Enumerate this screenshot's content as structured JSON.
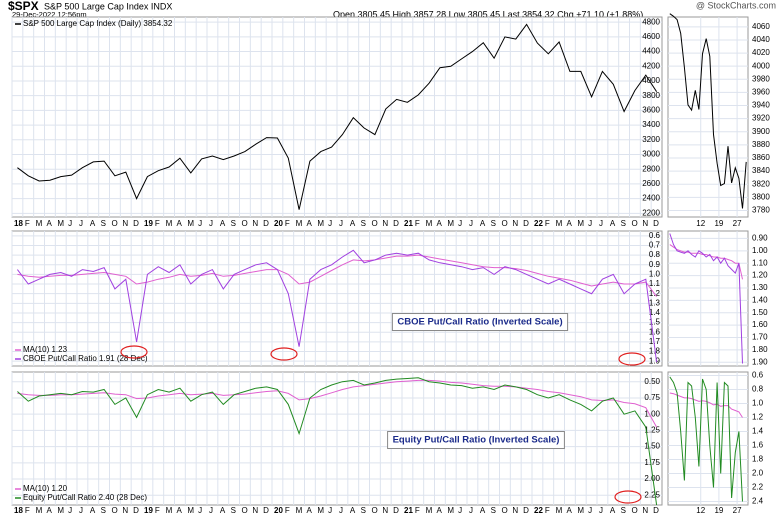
{
  "header": {
    "symbol": "$SPX",
    "name": "S&P 500 Large Cap Index INDX",
    "date": "29-Dec-2022 12:56pm",
    "quote": "Open 3805.45  High 3857.28  Low 3805.45  Last 3854.32  Chg +71.10 (+1.88%)",
    "source": "@ StockCharts.com"
  },
  "chart_data": [
    {
      "type": "line",
      "legend": "upper left",
      "categories": [
        "18",
        "F",
        "M",
        "A",
        "M",
        "J",
        "J",
        "A",
        "S",
        "O",
        "N",
        "D",
        "19",
        "F",
        "M",
        "A",
        "M",
        "J",
        "J",
        "A",
        "S",
        "O",
        "N",
        "D",
        "20",
        "F",
        "M",
        "A",
        "M",
        "J",
        "J",
        "A",
        "S",
        "O",
        "N",
        "D",
        "21",
        "F",
        "M",
        "A",
        "M",
        "J",
        "J",
        "A",
        "S",
        "O",
        "N",
        "D",
        "22",
        "F",
        "M",
        "A",
        "M",
        "J",
        "J",
        "A",
        "S",
        "O",
        "N",
        "D"
      ],
      "series": [
        {
          "name": "S&P 500 Large Cap Index (Daily) 3854.32",
          "color": "#000000",
          "values": [
            2820,
            2710,
            2640,
            2650,
            2700,
            2720,
            2820,
            2900,
            2910,
            2710,
            2760,
            2400,
            2700,
            2780,
            2830,
            2950,
            2750,
            2940,
            2980,
            2930,
            2980,
            3040,
            3140,
            3230,
            3225,
            2950,
            2250,
            2910,
            3040,
            3100,
            3270,
            3500,
            3360,
            3270,
            3620,
            3750,
            3710,
            3810,
            3970,
            4180,
            4200,
            4300,
            4400,
            4520,
            4310,
            4600,
            4570,
            4770,
            4515,
            4370,
            4530,
            4130,
            4130,
            3785,
            4130,
            3955,
            3585,
            3870,
            4080,
            3854
          ]
        }
      ],
      "ylim": [
        2150,
        4870
      ],
      "yticks": [
        2200,
        2400,
        2600,
        2800,
        3000,
        3200,
        3400,
        3600,
        3800,
        4000,
        4200,
        4400,
        4600,
        4800
      ],
      "grid": true
    },
    {
      "type": "line",
      "categories": [
        null,
        null,
        null,
        null,
        null,
        null,
        null,
        null,
        null,
        "12",
        null,
        null,
        null,
        null,
        "19",
        null,
        null,
        null,
        null,
        "27",
        null,
        null
      ],
      "series": [
        {
          "color": "#000000",
          "values": [
            4080,
            4076,
            4071,
            4050,
            3998,
            3941,
            3933,
            3963,
            3934,
            4019,
            4042,
            4015,
            3896,
            3852,
            3818,
            3821,
            3878,
            3822,
            3845,
            3829,
            3783,
            3854
          ]
        }
      ],
      "ylim": [
        3770,
        4075
      ],
      "yticks": [
        3780,
        3800,
        3820,
        3840,
        3860,
        3880,
        3900,
        3920,
        3940,
        3960,
        3980,
        4000,
        4020,
        4040,
        4060
      ],
      "grid": true
    },
    {
      "type": "line",
      "inverted": true,
      "legend": "lower left",
      "annotation": "CBOE Put/Call Ratio (Inverted Scale)",
      "categories": [
        "18",
        "F",
        "M",
        "A",
        "M",
        "J",
        "J",
        "A",
        "S",
        "O",
        "N",
        "D",
        "19",
        "F",
        "M",
        "A",
        "M",
        "J",
        "J",
        "A",
        "S",
        "O",
        "N",
        "D",
        "20",
        "F",
        "M",
        "A",
        "M",
        "J",
        "J",
        "A",
        "S",
        "O",
        "N",
        "D",
        "21",
        "F",
        "M",
        "A",
        "M",
        "J",
        "J",
        "A",
        "S",
        "O",
        "N",
        "D",
        "22",
        "F",
        "M",
        "A",
        "M",
        "J",
        "J",
        "A",
        "S",
        "O",
        "N",
        "D"
      ],
      "series": [
        {
          "name": "MA(10) 1.23",
          "color": "#e060d0",
          "values": [
            1.0,
            1.02,
            1.03,
            1.02,
            1.01,
            1.01,
            1.0,
            0.99,
            0.98,
            1.0,
            1.02,
            1.1,
            1.08,
            1.05,
            1.03,
            1.0,
            1.02,
            1.01,
            0.99,
            1.02,
            1.01,
            0.99,
            0.97,
            0.95,
            0.95,
            1.0,
            1.1,
            1.08,
            1.02,
            0.96,
            0.9,
            0.85,
            0.86,
            0.85,
            0.83,
            0.81,
            0.81,
            0.8,
            0.82,
            0.84,
            0.86,
            0.88,
            0.9,
            0.92,
            0.93,
            0.93,
            0.94,
            0.96,
            0.99,
            1.02,
            1.04,
            1.06,
            1.09,
            1.12,
            1.1,
            1.08,
            1.1,
            1.1,
            1.08,
            1.23
          ]
        },
        {
          "name": "CBOE Put/Call Ratio 1.91 (28 Dec)",
          "color": "#a040e0",
          "values": [
            0.95,
            1.1,
            1.05,
            1.0,
            0.98,
            1.02,
            0.95,
            0.97,
            0.93,
            1.15,
            1.05,
            1.7,
            1.0,
            0.92,
            0.98,
            0.9,
            1.1,
            1.0,
            0.95,
            1.15,
            1.0,
            0.95,
            0.9,
            0.88,
            0.95,
            1.2,
            1.75,
            1.05,
            0.95,
            0.9,
            0.82,
            0.75,
            0.88,
            0.85,
            0.8,
            0.78,
            0.8,
            0.78,
            0.85,
            0.88,
            0.9,
            0.92,
            0.95,
            0.93,
            1.0,
            0.92,
            0.95,
            1.0,
            1.05,
            1.1,
            1.05,
            1.1,
            1.15,
            1.2,
            1.05,
            1.0,
            1.2,
            1.1,
            1.05,
            1.91
          ]
        }
      ],
      "ylim": [
        0.55,
        1.95
      ],
      "yticks": [
        0.6,
        0.7,
        0.8,
        0.9,
        {
          "value": 1.0,
          "label": "1.0"
        },
        1.1,
        1.2,
        1.3,
        1.4,
        1.5,
        1.6,
        1.7,
        1.8,
        1.9
      ],
      "grid": true
    },
    {
      "type": "line",
      "inverted": true,
      "categories": [
        null,
        null,
        null,
        null,
        null,
        null,
        null,
        null,
        null,
        "12",
        null,
        null,
        null,
        null,
        "19",
        null,
        null,
        null,
        null,
        "27",
        null,
        null
      ],
      "series": [
        {
          "color": "#e060d0",
          "values": [
            0.95,
            0.97,
            0.99,
            1.0,
            1.01,
            1.01,
            1.02,
            1.02,
            1.02,
            1.03,
            1.03,
            1.04,
            1.05,
            1.05,
            1.06,
            1.06,
            1.07,
            1.08,
            1.1,
            1.1,
            1.23,
            null
          ]
        },
        {
          "color": "#a040e0",
          "values": [
            0.86,
            0.95,
            1.0,
            1.01,
            1.02,
            1.0,
            1.03,
            1.05,
            1.0,
            1.02,
            1.05,
            1.03,
            1.08,
            1.05,
            1.1,
            1.06,
            1.12,
            1.15,
            1.18,
            1.1,
            1.91,
            null
          ]
        }
      ],
      "ylim": [
        0.84,
        1.93
      ],
      "yticks": [
        {
          "value": 0.9,
          "label": "0.90"
        },
        {
          "value": 1.0,
          "label": "1.00"
        },
        {
          "value": 1.1,
          "label": "1.10"
        },
        {
          "value": 1.2,
          "label": "1.20"
        },
        {
          "value": 1.3,
          "label": "1.30"
        },
        {
          "value": 1.4,
          "label": "1.40"
        },
        {
          "value": 1.5,
          "label": "1.50"
        },
        {
          "value": 1.6,
          "label": "1.60"
        },
        {
          "value": 1.7,
          "label": "1.70"
        },
        {
          "value": 1.8,
          "label": "1.80"
        },
        {
          "value": 1.9,
          "label": "1.90"
        }
      ],
      "grid": true
    },
    {
      "type": "line",
      "inverted": true,
      "legend": "lower left",
      "annotation": "Equity Put/Call Ratio (Inverted Scale)",
      "categories": [
        "18",
        "F",
        "M",
        "A",
        "M",
        "J",
        "J",
        "A",
        "S",
        "O",
        "N",
        "D",
        "19",
        "F",
        "M",
        "A",
        "M",
        "J",
        "J",
        "A",
        "S",
        "O",
        "N",
        "D",
        "20",
        "F",
        "M",
        "A",
        "M",
        "J",
        "J",
        "A",
        "S",
        "O",
        "N",
        "D",
        "21",
        "F",
        "M",
        "A",
        "M",
        "J",
        "J",
        "A",
        "S",
        "O",
        "N",
        "D",
        "22",
        "F",
        "M",
        "A",
        "M",
        "J",
        "J",
        "A",
        "S",
        "O",
        "N",
        "D"
      ],
      "series": [
        {
          "name": "MA(10) 1.20",
          "color": "#e060d0",
          "values": [
            0.68,
            0.7,
            0.71,
            0.71,
            0.7,
            0.7,
            0.69,
            0.68,
            0.67,
            0.69,
            0.7,
            0.76,
            0.75,
            0.72,
            0.7,
            0.68,
            0.7,
            0.69,
            0.68,
            0.71,
            0.7,
            0.69,
            0.67,
            0.65,
            0.64,
            0.68,
            0.78,
            0.76,
            0.72,
            0.67,
            0.62,
            0.58,
            0.56,
            0.54,
            0.52,
            0.5,
            0.49,
            0.48,
            0.48,
            0.49,
            0.51,
            0.52,
            0.54,
            0.56,
            0.57,
            0.57,
            0.58,
            0.6,
            0.62,
            0.65,
            0.67,
            0.7,
            0.73,
            0.78,
            0.79,
            0.78,
            0.82,
            0.84,
            0.9,
            1.2
          ]
        },
        {
          "name": "Equity Put/Call Ratio 2.40 (28 Dec)",
          "color": "#228b22",
          "values": [
            0.65,
            0.8,
            0.72,
            0.7,
            0.68,
            0.7,
            0.65,
            0.66,
            0.62,
            0.85,
            0.75,
            1.05,
            0.7,
            0.62,
            0.66,
            0.6,
            0.8,
            0.7,
            0.66,
            0.85,
            0.7,
            0.65,
            0.6,
            0.58,
            0.62,
            0.85,
            1.3,
            0.75,
            0.62,
            0.55,
            0.5,
            0.48,
            0.55,
            0.52,
            0.48,
            0.46,
            0.45,
            0.44,
            0.5,
            0.52,
            0.55,
            0.56,
            0.6,
            0.58,
            0.62,
            0.55,
            0.58,
            0.62,
            0.7,
            0.75,
            0.7,
            0.78,
            0.85,
            0.95,
            0.8,
            0.75,
            1.0,
            0.95,
            1.2,
            2.4
          ]
        }
      ],
      "ylim": [
        0.35,
        2.4
      ],
      "yticks": [
        {
          "value": 0.5,
          "label": "0.50"
        },
        0.75,
        {
          "value": 1.0,
          "label": "1.00"
        },
        1.25,
        {
          "value": 1.5,
          "label": "1.50"
        },
        1.75,
        {
          "value": 2.0,
          "label": "2.00"
        },
        2.25
      ],
      "grid": true
    },
    {
      "type": "line",
      "inverted": true,
      "categories": [
        null,
        null,
        null,
        null,
        null,
        null,
        null,
        null,
        null,
        "12",
        null,
        null,
        null,
        null,
        "19",
        null,
        null,
        null,
        null,
        "27",
        null,
        null
      ],
      "series": [
        {
          "color": "#e060d0",
          "values": [
            0.85,
            0.86,
            0.88,
            0.9,
            0.92,
            0.92,
            0.93,
            0.95,
            0.97,
            0.96,
            0.97,
            0.99,
            1.02,
            1.01,
            1.04,
            1.03,
            1.03,
            1.08,
            1.1,
            1.12,
            1.2,
            null
          ]
        },
        {
          "color": "#228b22",
          "values": [
            0.62,
            0.7,
            0.85,
            1.4,
            2.1,
            0.7,
            0.75,
            1.2,
            1.9,
            0.65,
            0.8,
            1.6,
            2.2,
            0.7,
            2.0,
            0.7,
            0.75,
            2.35,
            1.7,
            1.4,
            2.4,
            null
          ]
        }
      ],
      "ylim": [
        0.55,
        2.45
      ],
      "yticks": [
        0.6,
        0.8,
        {
          "value": 1.0,
          "label": "1.0"
        },
        1.2,
        1.4,
        1.6,
        1.8,
        {
          "value": 2.0,
          "label": "2.0"
        },
        2.2,
        2.4
      ],
      "grid": true
    }
  ]
}
